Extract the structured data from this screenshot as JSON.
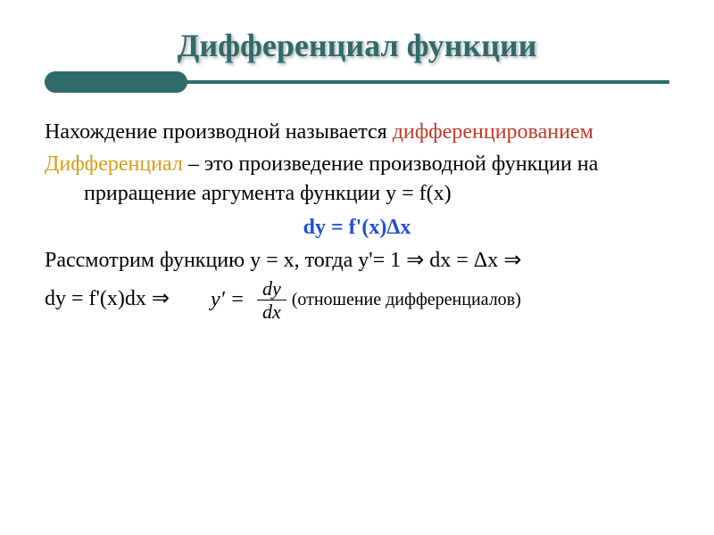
{
  "colors": {
    "title": "#2f6b6b",
    "accent_red": "#c0392b",
    "accent_yellow": "#d4a017",
    "formula_blue": "#1f4fd6",
    "divider": "#2f6b6b",
    "text": "#000000",
    "background": "#ffffff"
  },
  "typography": {
    "title_fontsize": 36,
    "body_fontsize": 24,
    "formula_fontsize": 24,
    "fraction_fontsize": 22,
    "font_family": "Times New Roman"
  },
  "title": "Дифференциал функции",
  "p1_a": "Нахождение производной называется ",
  "p1_b": "дифференцированием",
  "p2_a": "Дифференциал",
  "p2_b": " – это произведение производной функции на приращение аргумента функции y = f(x)",
  "formula1": "dy = f'(x)Δx",
  "p3_a": "Рассмотрим функцию y = x, тогда y'= 1 ",
  "arrow": "⇒",
  "p3_b": " dx = Δx ",
  "p4_a": "dy = f'(x)dx ",
  "frac_lhs": "y' =",
  "frac_num": "dy",
  "frac_den": "dx",
  "p4_note": "(отношение дифференциалов)"
}
